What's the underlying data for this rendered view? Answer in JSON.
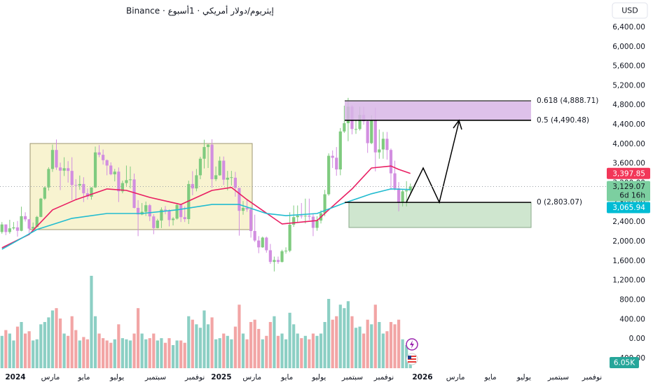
{
  "chart_data": {
    "type": "candlestick",
    "title": "إيثريوم/دولار أمريكي · 1أسبوع · Binance",
    "currency": "USD",
    "grid": false,
    "xlim": [
      -0.5,
      155.3
    ],
    "xticks": [
      {
        "value": 3.46,
        "label": "2024"
      },
      {
        "value": 12.47,
        "label": "مارس"
      },
      {
        "value": 21.1,
        "label": "مايو"
      },
      {
        "value": 29.6,
        "label": "يوليو"
      },
      {
        "value": 39.5,
        "label": "سبتمبر"
      },
      {
        "value": 49.6,
        "label": "نوفمبر"
      },
      {
        "value": 56.4,
        "label": "2025"
      },
      {
        "value": 64.3,
        "label": "مارس"
      },
      {
        "value": 73.3,
        "label": "مايو"
      },
      {
        "value": 81.5,
        "label": "يوليو"
      },
      {
        "value": 90.1,
        "label": "سبتمبر"
      },
      {
        "value": 98.2,
        "label": "نوفمبر"
      },
      {
        "value": 108.1,
        "label": "2026"
      },
      {
        "value": 116.6,
        "label": "مارس"
      },
      {
        "value": 125.6,
        "label": "مايو"
      },
      {
        "value": 134.2,
        "label": "يوليو"
      },
      {
        "value": 143.05,
        "label": "سبتمبر"
      },
      {
        "value": 151.7,
        "label": "نوفمبر"
      }
    ],
    "ylim": [
      -660,
      6960
    ],
    "yticks": [
      {
        "value": 6400,
        "label": "6,400.00"
      },
      {
        "value": 6000,
        "label": "6,000.00"
      },
      {
        "value": 5600,
        "label": "5,600.00"
      },
      {
        "value": 5200,
        "label": "5,200.00"
      },
      {
        "value": 4800,
        "label": "4,800.00"
      },
      {
        "value": 4400,
        "label": "4,400.00"
      },
      {
        "value": 4000,
        "label": "4,000.00"
      },
      {
        "value": 3600,
        "label": "3,600.00"
      },
      {
        "value": 3200,
        "label": "3,200.00"
      },
      {
        "value": 2800,
        "label": "2,800.00"
      },
      {
        "value": 2400,
        "label": "2,400.00"
      },
      {
        "value": 2000,
        "label": "2,000.00"
      },
      {
        "value": 1600,
        "label": "1,600.00"
      },
      {
        "value": 1200,
        "label": "1,200.00"
      },
      {
        "value": 800,
        "label": "800.00"
      },
      {
        "value": 400,
        "label": "400.00"
      },
      {
        "value": 0,
        "label": "0.00"
      },
      {
        "value": -400,
        "label": "-400.00"
      }
    ],
    "ohlc": {
      "up_color": "#7fcb7f",
      "down_color": "#d28ee0",
      "open": [
        2195,
        2350,
        2195,
        2270,
        2290,
        2220,
        2520,
        2455,
        2265,
        2300,
        2505,
        2880,
        3110,
        3490,
        3880,
        3520,
        3455,
        3505,
        3450,
        3160,
        3150,
        3180,
        2990,
        2920,
        3110,
        3830,
        3780,
        3670,
        3560,
        3380,
        3435,
        3030,
        3200,
        3260,
        3275,
        2690,
        2555,
        2610,
        2745,
        2515,
        2275,
        2430,
        2655,
        2635,
        2440,
        2470,
        2750,
        2500,
        2460,
        3180,
        3090,
        3360,
        3700,
        3940,
        3990,
        3280,
        3360,
        3660,
        3270,
        3310,
        3310,
        3100,
        2630,
        2690,
        2660,
        2215,
        2020,
        1880,
        2080,
        1820,
        1580,
        1620,
        1580,
        1800,
        1810,
        2345,
        2500,
        2530,
        2520,
        2530,
        2510,
        2280,
        2430,
        2580,
        2970,
        3760,
        3720,
        3480,
        4260,
        4430,
        4770,
        4310,
        4310,
        4600,
        4470,
        4020,
        4500,
        3830,
        3890,
        4110,
        3880,
        3400,
        3090,
        2800,
        3030,
        3050
      ],
      "high": [
        2400,
        2350,
        2445,
        2400,
        2420,
        2715,
        2600,
        2460,
        2390,
        2525,
        2895,
        3130,
        3525,
        3990,
        4095,
        3620,
        3730,
        3650,
        3730,
        3280,
        3355,
        3320,
        3090,
        3115,
        3950,
        3980,
        3890,
        3685,
        3625,
        3490,
        3520,
        3250,
        3560,
        3540,
        3395,
        2850,
        2790,
        2820,
        2770,
        2560,
        2465,
        2700,
        2730,
        2660,
        2500,
        2765,
        2770,
        2720,
        3250,
        3445,
        3490,
        3740,
        4090,
        4000,
        4100,
        3540,
        3745,
        3745,
        3450,
        3450,
        3430,
        3100,
        2830,
        2850,
        2710,
        2550,
        2110,
        2100,
        2100,
        1950,
        1690,
        1690,
        1830,
        1880,
        2600,
        2740,
        2740,
        2790,
        2880,
        2880,
        2580,
        2520,
        2640,
        3060,
        3810,
        3870,
        3940,
        4330,
        4790,
        4950,
        4800,
        4490,
        4770,
        4770,
        4480,
        4590,
        4750,
        4300,
        4250,
        4250,
        3910,
        3660,
        3220,
        3060,
        3240,
        3190
      ],
      "low": [
        2160,
        2130,
        2160,
        2240,
        2100,
        2210,
        2410,
        2165,
        2230,
        2300,
        2500,
        2855,
        3045,
        3430,
        3470,
        3055,
        3345,
        3210,
        2850,
        2850,
        3060,
        2810,
        2860,
        2860,
        3100,
        3730,
        3580,
        3360,
        3360,
        3235,
        2810,
        2990,
        3140,
        3090,
        2680,
        2110,
        2540,
        2525,
        2420,
        2150,
        2270,
        2275,
        2560,
        2310,
        2330,
        2450,
        2400,
        2400,
        2360,
        2950,
        3030,
        3280,
        3500,
        3510,
        3100,
        3240,
        3350,
        3160,
        3050,
        3150,
        2920,
        2120,
        2550,
        2610,
        2080,
        1990,
        1760,
        1870,
        1770,
        1540,
        1385,
        1540,
        1570,
        1750,
        1780,
        2300,
        2400,
        2470,
        2370,
        2440,
        2110,
        2220,
        2370,
        2520,
        2940,
        3510,
        3350,
        3360,
        4230,
        4060,
        4200,
        4210,
        4280,
        4400,
        3820,
        4000,
        3440,
        3700,
        3700,
        3680,
        3060,
        3050,
        2620,
        2720,
        2720,
        3000
      ],
      "close": [
        2350,
        2195,
        2270,
        2290,
        2220,
        2520,
        2455,
        2265,
        2300,
        2505,
        2880,
        3110,
        3490,
        3880,
        3520,
        3455,
        3505,
        3450,
        3160,
        3150,
        3180,
        2990,
        2920,
        3110,
        3830,
        3780,
        3670,
        3560,
        3380,
        3435,
        3030,
        3200,
        3260,
        3275,
        2690,
        2555,
        2610,
        2745,
        2515,
        2275,
        2430,
        2655,
        2635,
        2440,
        2470,
        2750,
        2500,
        2460,
        3180,
        3090,
        3360,
        3700,
        3940,
        3990,
        3280,
        3360,
        3660,
        3270,
        3310,
        3320,
        3100,
        2630,
        2690,
        2660,
        2215,
        2020,
        1880,
        2080,
        1820,
        1580,
        1620,
        1580,
        1800,
        1810,
        2345,
        2500,
        2530,
        2520,
        2530,
        2510,
        2280,
        2430,
        2580,
        2970,
        3760,
        3720,
        3480,
        4260,
        4430,
        4770,
        4310,
        4310,
        4600,
        4470,
        4020,
        4500,
        3830,
        3890,
        4110,
        3880,
        3400,
        3090,
        2800,
        3030,
        3050,
        3129.07
      ]
    },
    "volume": {
      "ylim": [
        0,
        80
      ],
      "up_color": "#8ccfc4",
      "down_color": "#f2a5a5",
      "values": [
        28,
        33,
        30,
        24,
        36,
        40,
        30,
        32,
        24,
        25,
        38,
        40,
        44,
        50,
        52,
        43,
        30,
        28,
        45,
        33,
        24,
        27,
        25,
        80,
        45,
        30,
        26,
        24,
        22,
        25,
        38,
        26,
        25,
        24,
        30,
        52,
        30,
        25,
        26,
        30,
        24,
        26,
        22,
        26,
        20,
        24,
        24,
        22,
        45,
        42,
        38,
        35,
        50,
        38,
        44,
        25,
        26,
        30,
        28,
        25,
        36,
        55,
        30,
        25,
        40,
        42,
        34,
        25,
        28,
        40,
        45,
        28,
        30,
        25,
        48,
        38,
        30,
        26,
        28,
        25,
        30,
        28,
        30,
        40,
        60,
        42,
        45,
        55,
        52,
        58,
        45,
        35,
        36,
        30,
        42,
        38,
        55,
        40,
        30,
        32,
        40,
        38,
        42,
        25,
        20,
        6.05
      ]
    },
    "moving_averages": [
      {
        "color": "#e91e63",
        "x": [
          0,
          7,
          13,
          19,
          27,
          32,
          38,
          46,
          54,
          59,
          63,
          72,
          81,
          84,
          90,
          95,
          100,
          102,
          105
        ],
        "values": [
          1870,
          2145,
          2650,
          2860,
          3080,
          3050,
          2905,
          2760,
          3050,
          3110,
          2860,
          2360,
          2430,
          2650,
          3080,
          3510,
          3550,
          3480,
          3397.85
        ]
      },
      {
        "color": "#22bcd0",
        "x": [
          0,
          9,
          18,
          27,
          36,
          45,
          54,
          61,
          68,
          73,
          81,
          88,
          95,
          100,
          105
        ],
        "values": [
          1840,
          2245,
          2475,
          2575,
          2575,
          2650,
          2760,
          2760,
          2575,
          2530,
          2575,
          2790,
          2980,
          3080,
          3065.94
        ]
      }
    ],
    "fib_levels": [
      {
        "value": 4888.71,
        "label": "0.618 (4,888.71)",
        "color": "#555555"
      },
      {
        "value": 4490.48,
        "label": "0.5 (4,490.48)",
        "color": "#000000"
      },
      {
        "value": 2803.07,
        "label": "0 (2,803.07)",
        "color": "#000000"
      }
    ],
    "fib_zone_color": "#d8b6e6",
    "price_badges": [
      {
        "value": 3397.85,
        "label": "3,397.85",
        "color": "#f23658"
      },
      {
        "value": 3129.07,
        "label": "3,129.07",
        "sublabel": "6d 16h",
        "color": "#7ccfa0"
      },
      {
        "value": 3065.94,
        "label": "3,065.94",
        "color": "#00bcd4"
      }
    ],
    "volume_badge": {
      "value": 6.05,
      "label": "6.05K",
      "color": "#26a69a"
    }
  }
}
